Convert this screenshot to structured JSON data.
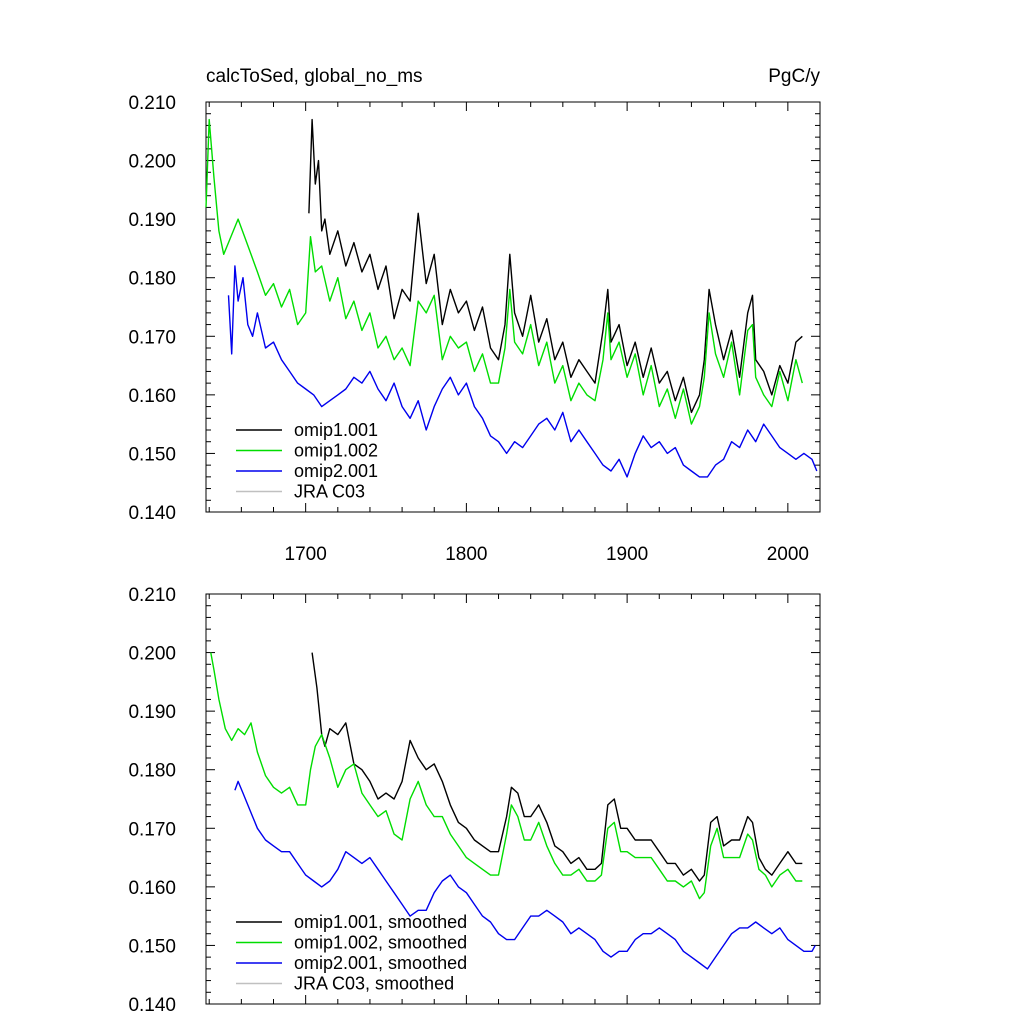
{
  "chart_data": [
    {
      "type": "line",
      "title": "calcToSed, global_no_ms",
      "units": "PgC/y",
      "xlim": [
        1638,
        2020
      ],
      "ylim": [
        0.14,
        0.21
      ],
      "y_ticks": [
        "0.140",
        "0.150",
        "0.160",
        "0.170",
        "0.180",
        "0.190",
        "0.200",
        "0.210"
      ],
      "x_ticks": [
        "1700",
        "1800",
        "1900",
        "2000"
      ],
      "legend_position": "bottom-left",
      "series": [
        {
          "name": "omip1.001",
          "color": "#000000",
          "x": [
            1702,
            1704,
            1706,
            1708,
            1710,
            1712,
            1715,
            1720,
            1725,
            1730,
            1735,
            1740,
            1745,
            1750,
            1755,
            1760,
            1765,
            1770,
            1775,
            1780,
            1785,
            1790,
            1795,
            1800,
            1805,
            1810,
            1815,
            1820,
            1824,
            1827,
            1830,
            1835,
            1840,
            1845,
            1850,
            1855,
            1860,
            1865,
            1870,
            1875,
            1880,
            1885,
            1888,
            1890,
            1895,
            1900,
            1905,
            1910,
            1915,
            1920,
            1925,
            1930,
            1935,
            1940,
            1945,
            1948,
            1951,
            1955,
            1960,
            1965,
            1970,
            1975,
            1978,
            1980,
            1985,
            1990,
            1995,
            2000,
            2005,
            2009
          ],
          "y": [
            0.191,
            0.207,
            0.196,
            0.2,
            0.188,
            0.19,
            0.184,
            0.188,
            0.182,
            0.186,
            0.181,
            0.184,
            0.178,
            0.182,
            0.173,
            0.178,
            0.176,
            0.191,
            0.179,
            0.184,
            0.172,
            0.178,
            0.174,
            0.176,
            0.171,
            0.175,
            0.168,
            0.166,
            0.172,
            0.184,
            0.174,
            0.17,
            0.177,
            0.169,
            0.173,
            0.166,
            0.169,
            0.163,
            0.166,
            0.164,
            0.162,
            0.171,
            0.178,
            0.169,
            0.172,
            0.165,
            0.169,
            0.163,
            0.168,
            0.162,
            0.164,
            0.159,
            0.163,
            0.157,
            0.16,
            0.166,
            0.178,
            0.172,
            0.166,
            0.171,
            0.163,
            0.174,
            0.177,
            0.166,
            0.164,
            0.16,
            0.165,
            0.162,
            0.169,
            0.17
          ]
        },
        {
          "name": "omip1.002",
          "color": "#00dd00",
          "x": [
            1638,
            1640,
            1643,
            1646,
            1649,
            1652,
            1655,
            1658,
            1662,
            1666,
            1670,
            1675,
            1680,
            1685,
            1690,
            1695,
            1700,
            1703,
            1706,
            1710,
            1715,
            1720,
            1725,
            1730,
            1735,
            1740,
            1745,
            1750,
            1755,
            1760,
            1765,
            1770,
            1775,
            1780,
            1785,
            1790,
            1795,
            1800,
            1805,
            1810,
            1815,
            1820,
            1824,
            1827,
            1830,
            1835,
            1840,
            1845,
            1850,
            1855,
            1860,
            1865,
            1870,
            1875,
            1880,
            1885,
            1888,
            1890,
            1895,
            1900,
            1905,
            1910,
            1915,
            1920,
            1925,
            1930,
            1935,
            1940,
            1945,
            1948,
            1951,
            1955,
            1960,
            1965,
            1970,
            1975,
            1978,
            1980,
            1985,
            1990,
            1995,
            2000,
            2005,
            2009
          ],
          "y": [
            0.192,
            0.207,
            0.197,
            0.188,
            0.184,
            0.186,
            0.188,
            0.19,
            0.187,
            0.184,
            0.181,
            0.177,
            0.179,
            0.175,
            0.178,
            0.172,
            0.174,
            0.187,
            0.181,
            0.182,
            0.176,
            0.18,
            0.173,
            0.176,
            0.171,
            0.174,
            0.168,
            0.17,
            0.166,
            0.168,
            0.165,
            0.176,
            0.174,
            0.177,
            0.166,
            0.17,
            0.168,
            0.169,
            0.164,
            0.167,
            0.162,
            0.162,
            0.168,
            0.178,
            0.169,
            0.167,
            0.172,
            0.165,
            0.169,
            0.162,
            0.165,
            0.159,
            0.162,
            0.16,
            0.159,
            0.166,
            0.174,
            0.166,
            0.169,
            0.163,
            0.167,
            0.16,
            0.165,
            0.158,
            0.161,
            0.156,
            0.161,
            0.155,
            0.158,
            0.163,
            0.174,
            0.167,
            0.163,
            0.169,
            0.16,
            0.171,
            0.172,
            0.163,
            0.16,
            0.158,
            0.164,
            0.159,
            0.166,
            0.162
          ]
        },
        {
          "name": "omip2.001",
          "color": "#0000ee",
          "x": [
            1652,
            1654,
            1656,
            1658,
            1661,
            1664,
            1667,
            1670,
            1675,
            1680,
            1685,
            1690,
            1695,
            1700,
            1705,
            1710,
            1715,
            1720,
            1725,
            1730,
            1735,
            1740,
            1745,
            1750,
            1755,
            1760,
            1765,
            1770,
            1775,
            1780,
            1785,
            1790,
            1795,
            1800,
            1805,
            1810,
            1815,
            1820,
            1825,
            1830,
            1835,
            1840,
            1845,
            1850,
            1855,
            1860,
            1865,
            1870,
            1875,
            1880,
            1885,
            1890,
            1895,
            1900,
            1905,
            1910,
            1915,
            1920,
            1925,
            1930,
            1935,
            1940,
            1945,
            1950,
            1955,
            1960,
            1965,
            1970,
            1975,
            1980,
            1985,
            1990,
            1995,
            2000,
            2005,
            2010,
            2015,
            2018
          ],
          "y": [
            0.177,
            0.167,
            0.182,
            0.176,
            0.18,
            0.172,
            0.17,
            0.174,
            0.168,
            0.169,
            0.166,
            0.164,
            0.162,
            0.161,
            0.16,
            0.158,
            0.159,
            0.16,
            0.161,
            0.163,
            0.162,
            0.164,
            0.161,
            0.159,
            0.162,
            0.158,
            0.156,
            0.159,
            0.154,
            0.158,
            0.161,
            0.163,
            0.16,
            0.162,
            0.158,
            0.156,
            0.153,
            0.152,
            0.15,
            0.152,
            0.151,
            0.153,
            0.155,
            0.156,
            0.154,
            0.157,
            0.152,
            0.154,
            0.152,
            0.15,
            0.148,
            0.147,
            0.149,
            0.146,
            0.15,
            0.153,
            0.151,
            0.152,
            0.15,
            0.151,
            0.148,
            0.147,
            0.146,
            0.146,
            0.148,
            0.149,
            0.152,
            0.151,
            0.154,
            0.152,
            0.155,
            0.153,
            0.151,
            0.15,
            0.149,
            0.15,
            0.149,
            0.147
          ]
        },
        {
          "name": "JRA C03",
          "color": "#c0c0c0",
          "x": [],
          "y": []
        }
      ]
    },
    {
      "type": "line",
      "title": "",
      "units": "",
      "xlim": [
        1638,
        2020
      ],
      "ylim": [
        0.14,
        0.21
      ],
      "y_ticks": [
        "0.140",
        "0.150",
        "0.160",
        "0.170",
        "0.180",
        "0.190",
        "0.200",
        "0.210"
      ],
      "x_ticks": [],
      "legend_position": "bottom-left",
      "series": [
        {
          "name": "omip1.001, smoothed",
          "color": "#000000",
          "x": [
            1704,
            1707,
            1710,
            1712,
            1715,
            1720,
            1725,
            1730,
            1735,
            1740,
            1745,
            1750,
            1755,
            1760,
            1765,
            1770,
            1775,
            1780,
            1785,
            1790,
            1795,
            1800,
            1805,
            1810,
            1815,
            1820,
            1825,
            1828,
            1832,
            1836,
            1840,
            1845,
            1850,
            1855,
            1860,
            1865,
            1870,
            1875,
            1880,
            1884,
            1888,
            1892,
            1896,
            1900,
            1905,
            1910,
            1915,
            1920,
            1925,
            1930,
            1935,
            1940,
            1945,
            1948,
            1952,
            1956,
            1960,
            1965,
            1970,
            1975,
            1978,
            1982,
            1986,
            1990,
            1995,
            2000,
            2005,
            2009
          ],
          "y": [
            0.2,
            0.194,
            0.186,
            0.184,
            0.187,
            0.186,
            0.188,
            0.181,
            0.18,
            0.178,
            0.175,
            0.176,
            0.175,
            0.178,
            0.185,
            0.182,
            0.18,
            0.181,
            0.178,
            0.174,
            0.171,
            0.17,
            0.168,
            0.167,
            0.166,
            0.166,
            0.172,
            0.177,
            0.176,
            0.172,
            0.172,
            0.174,
            0.171,
            0.167,
            0.166,
            0.164,
            0.165,
            0.163,
            0.163,
            0.164,
            0.174,
            0.175,
            0.17,
            0.17,
            0.168,
            0.168,
            0.168,
            0.166,
            0.164,
            0.164,
            0.162,
            0.163,
            0.161,
            0.162,
            0.171,
            0.172,
            0.167,
            0.168,
            0.168,
            0.172,
            0.171,
            0.165,
            0.163,
            0.162,
            0.164,
            0.166,
            0.164,
            0.164
          ]
        },
        {
          "name": "omip1.002, smoothed",
          "color": "#00dd00",
          "x": [
            1641,
            1643,
            1646,
            1650,
            1654,
            1658,
            1662,
            1666,
            1670,
            1675,
            1680,
            1685,
            1690,
            1695,
            1700,
            1703,
            1706,
            1710,
            1715,
            1720,
            1725,
            1730,
            1735,
            1740,
            1745,
            1750,
            1755,
            1760,
            1765,
            1770,
            1775,
            1780,
            1785,
            1790,
            1795,
            1800,
            1805,
            1810,
            1815,
            1820,
            1825,
            1828,
            1832,
            1836,
            1840,
            1845,
            1850,
            1855,
            1860,
            1865,
            1870,
            1875,
            1880,
            1884,
            1888,
            1892,
            1896,
            1900,
            1905,
            1910,
            1915,
            1920,
            1925,
            1930,
            1935,
            1940,
            1945,
            1948,
            1952,
            1956,
            1960,
            1965,
            1970,
            1975,
            1978,
            1982,
            1986,
            1990,
            1995,
            2000,
            2005,
            2009
          ],
          "y": [
            0.2,
            0.197,
            0.192,
            0.187,
            0.185,
            0.187,
            0.186,
            0.188,
            0.183,
            0.179,
            0.177,
            0.176,
            0.177,
            0.174,
            0.174,
            0.18,
            0.184,
            0.186,
            0.182,
            0.177,
            0.18,
            0.181,
            0.176,
            0.174,
            0.172,
            0.173,
            0.169,
            0.168,
            0.175,
            0.178,
            0.174,
            0.172,
            0.172,
            0.169,
            0.167,
            0.165,
            0.164,
            0.163,
            0.162,
            0.162,
            0.169,
            0.174,
            0.172,
            0.168,
            0.168,
            0.171,
            0.167,
            0.164,
            0.162,
            0.162,
            0.163,
            0.161,
            0.161,
            0.162,
            0.17,
            0.171,
            0.166,
            0.166,
            0.165,
            0.165,
            0.165,
            0.163,
            0.161,
            0.161,
            0.16,
            0.161,
            0.158,
            0.159,
            0.167,
            0.17,
            0.165,
            0.165,
            0.165,
            0.169,
            0.168,
            0.163,
            0.162,
            0.16,
            0.162,
            0.163,
            0.161,
            0.161
          ]
        },
        {
          "name": "omip2.001, smoothed",
          "color": "#0000ee",
          "x": [
            1656,
            1658,
            1661,
            1664,
            1667,
            1670,
            1675,
            1680,
            1685,
            1690,
            1695,
            1700,
            1705,
            1710,
            1715,
            1720,
            1725,
            1730,
            1735,
            1740,
            1745,
            1750,
            1755,
            1760,
            1765,
            1770,
            1775,
            1780,
            1785,
            1790,
            1795,
            1800,
            1805,
            1810,
            1815,
            1820,
            1825,
            1830,
            1835,
            1840,
            1845,
            1850,
            1855,
            1860,
            1865,
            1870,
            1875,
            1880,
            1885,
            1890,
            1895,
            1900,
            1905,
            1910,
            1915,
            1920,
            1925,
            1930,
            1935,
            1940,
            1945,
            1950,
            1955,
            1960,
            1965,
            1970,
            1975,
            1980,
            1985,
            1990,
            1995,
            2000,
            2005,
            2010,
            2015,
            2017
          ],
          "y": [
            0.1765,
            0.178,
            0.176,
            0.174,
            0.172,
            0.17,
            0.168,
            0.167,
            0.166,
            0.166,
            0.164,
            0.162,
            0.161,
            0.16,
            0.161,
            0.163,
            0.166,
            0.165,
            0.164,
            0.165,
            0.163,
            0.161,
            0.159,
            0.157,
            0.155,
            0.156,
            0.156,
            0.159,
            0.161,
            0.162,
            0.16,
            0.159,
            0.157,
            0.155,
            0.154,
            0.152,
            0.151,
            0.151,
            0.153,
            0.155,
            0.155,
            0.156,
            0.155,
            0.154,
            0.152,
            0.153,
            0.152,
            0.151,
            0.149,
            0.148,
            0.149,
            0.149,
            0.151,
            0.152,
            0.152,
            0.153,
            0.152,
            0.151,
            0.149,
            0.148,
            0.147,
            0.146,
            0.148,
            0.15,
            0.152,
            0.153,
            0.153,
            0.154,
            0.153,
            0.152,
            0.153,
            0.151,
            0.15,
            0.149,
            0.149,
            0.15
          ]
        },
        {
          "name": "JRA C03, smoothed",
          "color": "#c0c0c0",
          "x": [],
          "y": []
        }
      ]
    }
  ]
}
